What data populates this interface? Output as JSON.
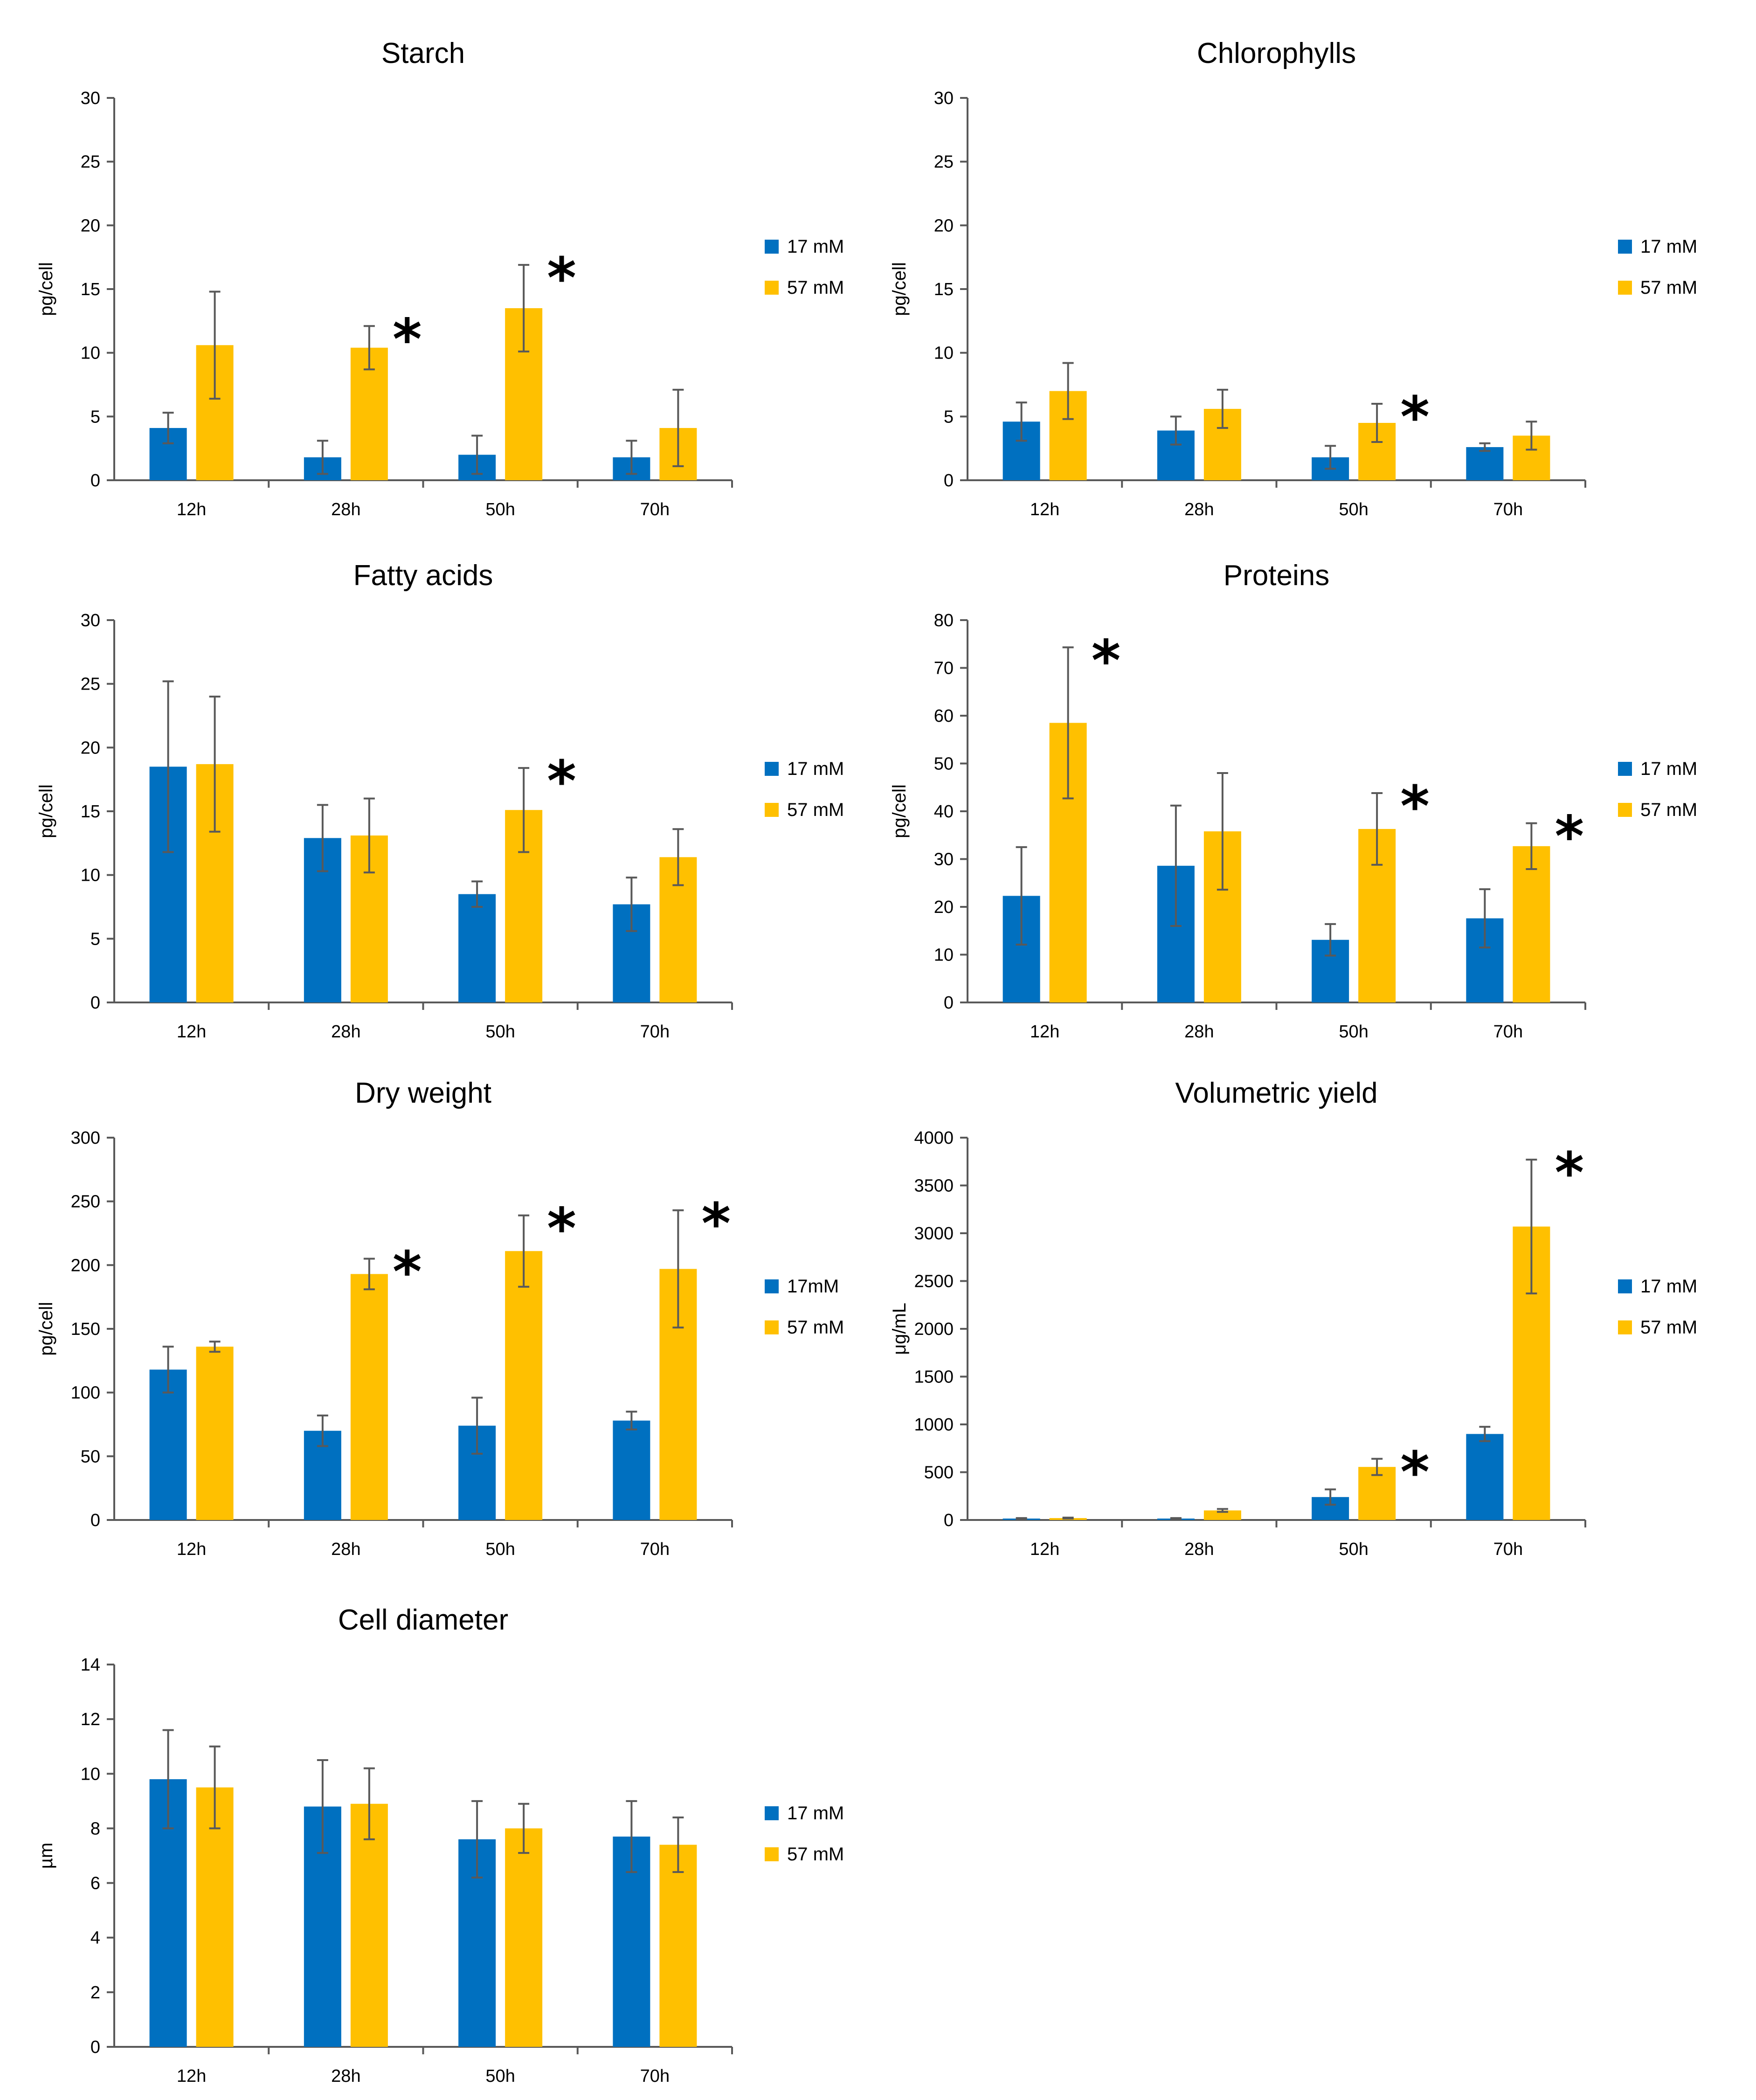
{
  "chart_data": [
    {
      "type": "bar",
      "title": "Starch",
      "ylabel": "pg/cell",
      "xlabel": "",
      "ylim": [
        0,
        30
      ],
      "yticks": [
        0,
        5,
        10,
        15,
        20,
        25,
        30
      ],
      "categories": [
        "12h",
        "28h",
        "50h",
        "70h"
      ],
      "legend_position": "right",
      "series": [
        {
          "name": "17 mM",
          "color": "#0070C0",
          "values": [
            4.1,
            1.8,
            2.0,
            1.8
          ],
          "errors": [
            1.2,
            1.3,
            1.5,
            1.3
          ]
        },
        {
          "name": "57 mM",
          "color": "#FFC000",
          "values": [
            10.6,
            10.4,
            13.5,
            4.1
          ],
          "errors": [
            4.2,
            1.7,
            3.4,
            3.0
          ]
        }
      ],
      "significance": [
        "",
        "*",
        "*",
        ""
      ]
    },
    {
      "type": "bar",
      "title": "Chlorophylls",
      "ylabel": "pg/cell",
      "xlabel": "",
      "ylim": [
        0,
        30
      ],
      "yticks": [
        0,
        5,
        10,
        15,
        20,
        25,
        30
      ],
      "categories": [
        "12h",
        "28h",
        "50h",
        "70h"
      ],
      "legend_position": "right",
      "series": [
        {
          "name": "17 mM",
          "color": "#0070C0",
          "values": [
            4.6,
            3.9,
            1.8,
            2.6
          ],
          "errors": [
            1.5,
            1.1,
            0.9,
            0.3
          ]
        },
        {
          "name": "57 mM",
          "color": "#FFC000",
          "values": [
            7.0,
            5.6,
            4.5,
            3.5
          ],
          "errors": [
            2.2,
            1.5,
            1.5,
            1.1
          ]
        }
      ],
      "significance": [
        "",
        "",
        "*",
        ""
      ]
    },
    {
      "type": "bar",
      "title": "Fatty acids",
      "ylabel": "pg/cell",
      "xlabel": "",
      "ylim": [
        0,
        30
      ],
      "yticks": [
        0,
        5,
        10,
        15,
        20,
        25,
        30
      ],
      "categories": [
        "12h",
        "28h",
        "50h",
        "70h"
      ],
      "legend_position": "right",
      "series": [
        {
          "name": "17 mM",
          "color": "#0070C0",
          "values": [
            18.5,
            12.9,
            8.5,
            7.7
          ],
          "errors": [
            6.7,
            2.6,
            1.0,
            2.1
          ]
        },
        {
          "name": "57 mM",
          "color": "#FFC000",
          "values": [
            18.7,
            13.1,
            15.1,
            11.4
          ],
          "errors": [
            5.3,
            2.9,
            3.3,
            2.2
          ]
        }
      ],
      "significance": [
        "",
        "",
        "*",
        ""
      ]
    },
    {
      "type": "bar",
      "title": "Proteins",
      "ylabel": "pg/cell",
      "xlabel": "",
      "ylim": [
        0,
        80
      ],
      "yticks": [
        0,
        10,
        20,
        30,
        40,
        50,
        60,
        70,
        80
      ],
      "categories": [
        "12h",
        "28h",
        "50h",
        "70h"
      ],
      "legend_position": "right",
      "series": [
        {
          "name": "17 mM",
          "color": "#0070C0",
          "values": [
            22.3,
            28.6,
            13.1,
            17.6
          ],
          "errors": [
            10.2,
            12.6,
            3.3,
            6.1
          ]
        },
        {
          "name": "57 mM",
          "color": "#FFC000",
          "values": [
            58.5,
            35.8,
            36.3,
            32.7
          ],
          "errors": [
            15.8,
            12.2,
            7.5,
            4.8
          ]
        }
      ],
      "significance": [
        "*",
        "",
        "*",
        "*"
      ]
    },
    {
      "type": "bar",
      "title": "Dry weight",
      "ylabel": "pg/cell",
      "xlabel": "",
      "ylim": [
        0,
        300
      ],
      "yticks": [
        0,
        50,
        100,
        150,
        200,
        250,
        300
      ],
      "categories": [
        "12h",
        "28h",
        "50h",
        "70h"
      ],
      "legend_position": "right",
      "series": [
        {
          "name": "17mM",
          "color": "#0070C0",
          "values": [
            118,
            70,
            74,
            78
          ],
          "errors": [
            18,
            12,
            22,
            7
          ]
        },
        {
          "name": "57 mM",
          "color": "#FFC000",
          "values": [
            136,
            193,
            211,
            197
          ],
          "errors": [
            4,
            12,
            28,
            46
          ]
        }
      ],
      "significance": [
        "",
        "*",
        "*",
        "*"
      ]
    },
    {
      "type": "bar",
      "title": "Volumetric yield",
      "ylabel": "μg/mL",
      "xlabel": "",
      "ylim": [
        0,
        4000
      ],
      "yticks": [
        0,
        500,
        1000,
        1500,
        2000,
        2500,
        3000,
        3500,
        4000
      ],
      "categories": [
        "12h",
        "28h",
        "50h",
        "70h"
      ],
      "legend_position": "right",
      "series": [
        {
          "name": "17 mM",
          "color": "#0070C0",
          "values": [
            15,
            15,
            240,
            900
          ],
          "errors": [
            5,
            5,
            80,
            75
          ]
        },
        {
          "name": "57 mM",
          "color": "#FFC000",
          "values": [
            20,
            100,
            555,
            3070
          ],
          "errors": [
            5,
            15,
            85,
            700
          ]
        }
      ],
      "significance": [
        "",
        "",
        "*",
        "*"
      ]
    },
    {
      "type": "bar",
      "title": "Cell diameter",
      "ylabel": "µm",
      "xlabel": "",
      "ylim": [
        0,
        14
      ],
      "yticks": [
        0,
        2,
        4,
        6,
        8,
        10,
        12,
        14
      ],
      "categories": [
        "12h",
        "28h",
        "50h",
        "70h"
      ],
      "legend_position": "right",
      "series": [
        {
          "name": "17 mM",
          "color": "#0070C0",
          "values": [
            9.8,
            8.8,
            7.6,
            7.7
          ],
          "errors": [
            1.8,
            1.7,
            1.4,
            1.3
          ]
        },
        {
          "name": "57 mM",
          "color": "#FFC000",
          "values": [
            9.5,
            8.9,
            8.0,
            7.4
          ],
          "errors": [
            1.5,
            1.3,
            0.9,
            1.0
          ]
        }
      ],
      "significance": [
        "",
        "",
        "",
        ""
      ]
    }
  ]
}
